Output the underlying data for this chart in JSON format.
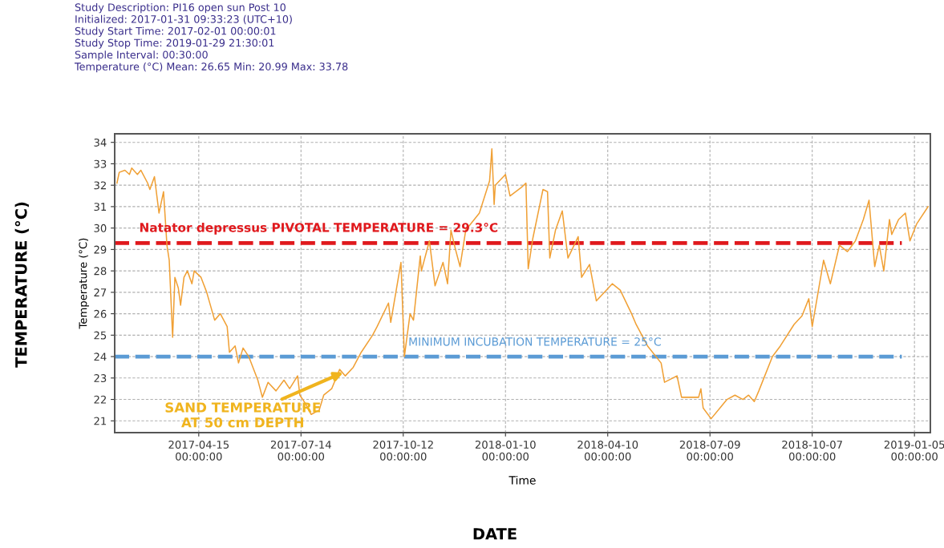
{
  "chart_data": {
    "type": "line",
    "subtitle": "Study Description: PI16 open sun Post 10\nInitialized: 2017-01-31 09:33:23 (UTC+10)\nStudy Start Time: 2017-02-01 00:00:01\nStudy Stop Time: 2019-01-29 21:30:01\nSample Interval: 00:30:00\nTemperature (°C) Mean: 26.65 Min: 20.99 Max: 33.78",
    "xlabel": "Time",
    "ylabel": "Temperature (°C)",
    "annotations": [
      "TEMPERATURE (°C)",
      "DATE",
      "MINIMUM INCUBATION TEMPERATURE = 25°C",
      {
        "text": "SAND TEMPERATURE\nAT 50 cm DEPTH",
        "x": "2017-08-22",
        "y": 23.3
      }
    ],
    "x": [
      "2017-02-02",
      "2017-02-04",
      "2017-02-09",
      "2017-02-13",
      "2017-02-15",
      "2017-02-20",
      "2017-02-23",
      "2017-03-01",
      "2017-03-03",
      "2017-03-07",
      "2017-03-11",
      "2017-03-13",
      "2017-03-15",
      "2017-03-18",
      "2017-03-20",
      "2017-03-23",
      "2017-03-25",
      "2017-03-28",
      "2017-03-30",
      "2017-04-02",
      "2017-04-05",
      "2017-04-09",
      "2017-04-11",
      "2017-04-17",
      "2017-04-22",
      "2017-04-29",
      "2017-05-04",
      "2017-05-10",
      "2017-05-12",
      "2017-05-17",
      "2017-05-20",
      "2017-05-24",
      "2017-05-29",
      "2017-06-06",
      "2017-06-10",
      "2017-06-15",
      "2017-06-22",
      "2017-06-29",
      "2017-07-04",
      "2017-07-11",
      "2017-07-13",
      "2017-07-18",
      "2017-07-23",
      "2017-07-30",
      "2017-08-03",
      "2017-08-10",
      "2017-08-17",
      "2017-08-22",
      "2017-08-29",
      "2017-09-05",
      "2017-09-15",
      "2017-09-19",
      "2017-09-29",
      "2017-10-01",
      "2017-10-10",
      "2017-10-13",
      "2017-10-18",
      "2017-10-21",
      "2017-10-27",
      "2017-10-28",
      "2017-11-04",
      "2017-11-09",
      "2017-11-16",
      "2017-11-20",
      "2017-11-23",
      "2017-11-27",
      "2017-12-01",
      "2017-12-06",
      "2017-12-18",
      "2017-12-27",
      "2017-12-29",
      "2017-12-31",
      "2018-01-01",
      "2018-01-10",
      "2018-01-14",
      "2018-01-24",
      "2018-01-28",
      "2018-01-30",
      "2018-02-03",
      "2018-02-12",
      "2018-02-16",
      "2018-02-18",
      "2018-02-23",
      "2018-03-01",
      "2018-03-06",
      "2018-03-15",
      "2018-03-18",
      "2018-03-25",
      "2018-03-31",
      "2018-04-14",
      "2018-04-21",
      "2018-05-01",
      "2018-05-05",
      "2018-05-15",
      "2018-05-27",
      "2018-05-30",
      "2018-06-10",
      "2018-06-14",
      "2018-06-29",
      "2018-07-01",
      "2018-07-03",
      "2018-07-10",
      "2018-07-24",
      "2018-07-31",
      "2018-08-07",
      "2018-08-12",
      "2018-08-17",
      "2018-08-21",
      "2018-09-02",
      "2018-09-09",
      "2018-09-21",
      "2018-09-28",
      "2018-10-04",
      "2018-10-07",
      "2018-10-17",
      "2018-10-23",
      "2018-10-31",
      "2018-11-07",
      "2018-11-14",
      "2018-11-21",
      "2018-11-26",
      "2018-12-01",
      "2018-12-05",
      "2018-12-09",
      "2018-12-14",
      "2018-12-16",
      "2018-12-22",
      "2018-12-28",
      "2019-01-01",
      "2019-01-07",
      "2019-01-17"
    ],
    "series": [
      {
        "color": "#f0a035",
        "values": [
          32.1,
          32.6,
          32.7,
          32.5,
          32.8,
          32.5,
          32.7,
          32.1,
          31.8,
          32.4,
          30.7,
          31.2,
          31.7,
          29.2,
          28.5,
          24.9,
          27.7,
          27.2,
          26.4,
          27.7,
          28.0,
          27.4,
          28.0,
          27.7,
          27.0,
          25.7,
          26.0,
          25.4,
          24.2,
          24.5,
          23.7,
          24.4,
          24.0,
          22.9,
          22.1,
          22.8,
          22.4,
          22.9,
          22.5,
          23.1,
          22.2,
          21.8,
          21.3,
          21.5,
          22.2,
          22.5,
          23.4,
          23.1,
          23.5,
          24.2,
          25.0,
          25.4,
          26.5,
          25.6,
          28.4,
          24.0,
          26.0,
          25.7,
          28.7,
          28.0,
          29.4,
          27.3,
          28.4,
          27.4,
          29.9,
          29.0,
          28.2,
          29.9,
          30.7,
          32.2,
          33.7,
          31.1,
          32.0,
          32.5,
          31.5,
          31.9,
          32.1,
          28.1,
          29.5,
          31.8,
          31.7,
          28.6,
          29.9,
          30.8,
          28.6,
          29.6,
          27.7,
          28.3,
          26.6,
          27.4,
          27.1,
          26.0,
          25.5,
          24.5,
          23.7,
          22.8,
          23.1,
          22.1,
          22.1,
          22.5,
          21.6,
          21.1,
          22.0,
          22.2,
          22.0,
          22.2,
          21.9,
          22.4,
          24.0,
          24.5,
          25.5,
          25.9,
          26.7,
          25.4,
          28.5,
          27.4,
          29.2,
          28.9,
          29.4,
          30.4,
          31.3,
          28.2,
          29.2,
          28.0,
          30.4,
          29.7,
          30.4,
          30.7,
          29.4,
          30.2,
          31.0
        ]
      }
    ],
    "xlim": [
      "2017-01-31",
      "2019-01-19"
    ],
    "xticks": [
      {
        "value": "2017-04-15",
        "label": "2017-04-15\n00:00:00"
      },
      {
        "value": "2017-07-14",
        "label": "2017-07-14\n00:00:00"
      },
      {
        "value": "2017-10-12",
        "label": "2017-10-12\n00:00:00"
      },
      {
        "value": "2018-01-10",
        "label": "2018-01-10\n00:00:00"
      },
      {
        "value": "2018-04-10",
        "label": "2018-04-10\n00:00:00"
      },
      {
        "value": "2018-07-09",
        "label": "2018-07-09\n00:00:00"
      },
      {
        "value": "2018-10-07",
        "label": "2018-10-07\n00:00:00"
      },
      {
        "value": "2019-01-05",
        "label": "2019-01-05\n00:00:00"
      }
    ],
    "ylim": [
      20.45,
      34.4
    ],
    "yticks": [
      21,
      22,
      23,
      24,
      25,
      26,
      27,
      28,
      29,
      30,
      31,
      32,
      33,
      34
    ],
    "ref_lines": [
      {
        "axis": "y",
        "value": 29.3,
        "label": "Natator depressus PIVOTAL TEMPERATURE = 29.3°C",
        "color": "#e0191d",
        "line_style": "dashed"
      },
      {
        "axis": "y",
        "value": 24,
        "color": "#5b9bd5",
        "line_style": "dashed"
      }
    ],
    "grid": true,
    "legend": false,
    "marker": "none",
    "line_style": "solid"
  }
}
